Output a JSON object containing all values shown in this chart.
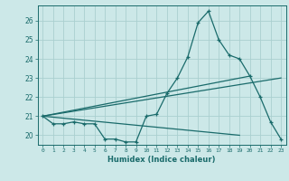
{
  "xlabel": "Humidex (Indice chaleur)",
  "bg_color": "#cce8e8",
  "grid_color": "#aacfcf",
  "line_color": "#1a6b6b",
  "xlim": [
    -0.5,
    23.5
  ],
  "ylim": [
    19.5,
    26.8
  ],
  "xticks": [
    0,
    1,
    2,
    3,
    4,
    5,
    6,
    7,
    8,
    9,
    10,
    11,
    12,
    13,
    14,
    15,
    16,
    17,
    18,
    19,
    20,
    21,
    22,
    23
  ],
  "yticks": [
    20,
    21,
    22,
    23,
    24,
    25,
    26
  ],
  "line1_x": [
    0,
    1,
    2,
    3,
    4,
    5,
    6,
    7,
    8,
    9,
    10,
    11,
    12,
    13,
    14,
    15,
    16,
    17,
    18,
    19,
    20,
    21,
    22,
    23
  ],
  "line1_y": [
    21.0,
    20.6,
    20.6,
    20.7,
    20.6,
    20.6,
    19.8,
    19.8,
    19.65,
    19.65,
    21.0,
    21.1,
    22.2,
    23.0,
    24.1,
    25.9,
    26.5,
    25.0,
    24.2,
    24.0,
    23.1,
    22.0,
    20.7,
    19.8
  ],
  "line2_x": [
    0,
    23
  ],
  "line2_y": [
    21.0,
    23.0
  ],
  "line3_x": [
    0,
    19
  ],
  "line3_y": [
    21.0,
    20.0
  ],
  "line4_x": [
    0,
    20
  ],
  "line4_y": [
    21.0,
    23.1
  ]
}
